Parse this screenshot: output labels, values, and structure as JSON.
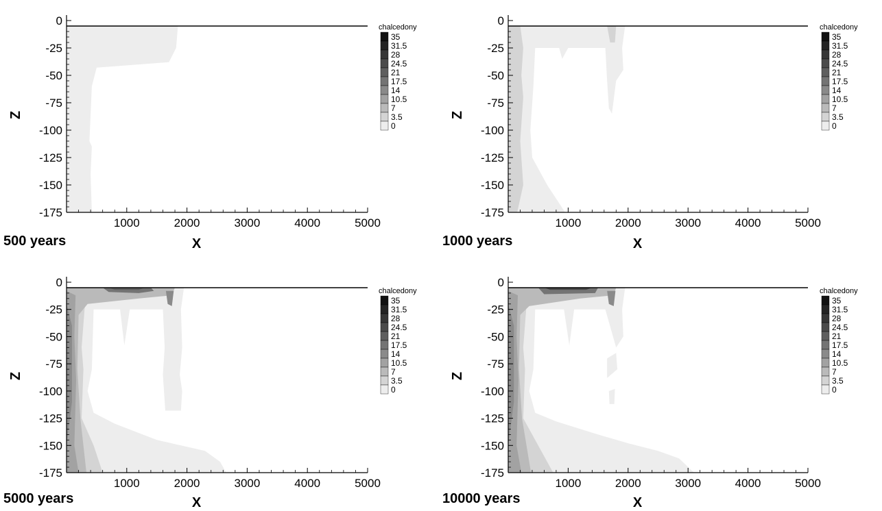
{
  "chart_data": [
    {
      "type": "contour",
      "panel_label": "500 years",
      "xlabel": "X",
      "ylabel": "Z",
      "xlim": [
        0,
        5000
      ],
      "ylim": [
        -175,
        0
      ],
      "x_ticks": [
        "1000",
        "2000",
        "3000",
        "4000",
        "5000"
      ],
      "y_ticks": [
        "0",
        "-25",
        "-50",
        "-75",
        "-100",
        "-125",
        "-150",
        "-175"
      ],
      "surface_z": -5,
      "legend": {
        "title": "chalcedony",
        "levels": [
          "35",
          "31.5",
          "28",
          "24.5",
          "21",
          "17.5",
          "14",
          "10.5",
          "7",
          "3.5",
          "0"
        ]
      },
      "regions": [
        {
          "level": 1,
          "points": [
            [
              0,
              -5
            ],
            [
              1850,
              -5
            ],
            [
              1820,
              -25
            ],
            [
              1700,
              -38
            ],
            [
              500,
              -43
            ],
            [
              420,
              -60
            ],
            [
              380,
              -110
            ],
            [
              420,
              -115
            ],
            [
              400,
              -140
            ],
            [
              420,
              -175
            ],
            [
              0,
              -175
            ]
          ]
        }
      ]
    },
    {
      "type": "contour",
      "panel_label": "1000 years",
      "xlabel": "X",
      "ylabel": "Z",
      "xlim": [
        0,
        5000
      ],
      "ylim": [
        -175,
        0
      ],
      "x_ticks": [
        "1000",
        "2000",
        "3000",
        "4000",
        "5000"
      ],
      "y_ticks": [
        "0",
        "-25",
        "-50",
        "-75",
        "-100",
        "-125",
        "-150",
        "-175"
      ],
      "surface_z": -5,
      "legend": {
        "title": "chalcedony",
        "levels": [
          "35",
          "31.5",
          "28",
          "24.5",
          "21",
          "17.5",
          "14",
          "10.5",
          "7",
          "3.5",
          "0"
        ]
      },
      "regions": [
        {
          "level": 1,
          "points": [
            [
              0,
              -5
            ],
            [
              1950,
              -5
            ],
            [
              1900,
              -25
            ],
            [
              1920,
              -45
            ],
            [
              1800,
              -55
            ],
            [
              1730,
              -85
            ],
            [
              1680,
              -80
            ],
            [
              1650,
              -55
            ],
            [
              1620,
              -25
            ],
            [
              1000,
              -25
            ],
            [
              900,
              -35
            ],
            [
              850,
              -25
            ],
            [
              450,
              -25
            ],
            [
              420,
              -60
            ],
            [
              370,
              -100
            ],
            [
              400,
              -125
            ],
            [
              650,
              -150
            ],
            [
              950,
              -175
            ],
            [
              0,
              -175
            ]
          ]
        },
        {
          "level": 2,
          "points": [
            [
              0,
              -5
            ],
            [
              200,
              -5
            ],
            [
              250,
              -25
            ],
            [
              220,
              -50
            ],
            [
              250,
              -70
            ],
            [
              200,
              -110
            ],
            [
              250,
              -150
            ],
            [
              150,
              -175
            ],
            [
              0,
              -175
            ]
          ]
        },
        {
          "level": 2,
          "points": [
            [
              1650,
              -5
            ],
            [
              1800,
              -5
            ],
            [
              1780,
              -20
            ],
            [
              1700,
              -20
            ]
          ]
        }
      ]
    },
    {
      "type": "contour",
      "panel_label": "5000 years",
      "xlabel": "X",
      "ylabel": "Z",
      "xlim": [
        0,
        5000
      ],
      "ylim": [
        -175,
        0
      ],
      "x_ticks": [
        "1000",
        "2000",
        "3000",
        "4000",
        "5000"
      ],
      "y_ticks": [
        "0",
        "-25",
        "-50",
        "-75",
        "-100",
        "-125",
        "-150",
        "-175"
      ],
      "surface_z": -5,
      "legend": {
        "title": "chalcedony",
        "levels": [
          "35",
          "31.5",
          "28",
          "24.5",
          "21",
          "17.5",
          "14",
          "10.5",
          "7",
          "3.5",
          "0"
        ]
      },
      "regions": [
        {
          "level": 1,
          "points": [
            [
              0,
              -5
            ],
            [
              1950,
              -5
            ],
            [
              1900,
              -25
            ],
            [
              1920,
              -60
            ],
            [
              1880,
              -85
            ],
            [
              1920,
              -100
            ],
            [
              1900,
              -118
            ],
            [
              1640,
              -118
            ],
            [
              1600,
              -85
            ],
            [
              1630,
              -60
            ],
            [
              1600,
              -25
            ],
            [
              1050,
              -25
            ],
            [
              960,
              -58
            ],
            [
              890,
              -25
            ],
            [
              450,
              -25
            ],
            [
              420,
              -80
            ],
            [
              350,
              -100
            ],
            [
              450,
              -120
            ],
            [
              800,
              -130
            ],
            [
              1500,
              -145
            ],
            [
              1900,
              -150
            ],
            [
              2300,
              -155
            ],
            [
              2550,
              -165
            ],
            [
              2650,
              -175
            ],
            [
              0,
              -175
            ]
          ]
        },
        {
          "level": 2,
          "points": [
            [
              0,
              -5
            ],
            [
              350,
              -5
            ],
            [
              300,
              -25
            ],
            [
              250,
              -60
            ],
            [
              280,
              -80
            ],
            [
              250,
              -125
            ],
            [
              450,
              -150
            ],
            [
              600,
              -175
            ],
            [
              0,
              -175
            ]
          ]
        },
        {
          "level": 3,
          "points": [
            [
              0,
              -5
            ],
            [
              1800,
              -5
            ],
            [
              1750,
              -12
            ],
            [
              1200,
              -15
            ],
            [
              350,
              -20
            ],
            [
              200,
              -30
            ],
            [
              180,
              -80
            ],
            [
              230,
              -125
            ],
            [
              330,
              -175
            ],
            [
              0,
              -175
            ]
          ]
        },
        {
          "level": 4,
          "points": [
            [
              0,
              -8
            ],
            [
              150,
              -12
            ],
            [
              130,
              -50
            ],
            [
              160,
              -90
            ],
            [
              130,
              -150
            ],
            [
              200,
              -175
            ],
            [
              0,
              -175
            ]
          ]
        },
        {
          "level": 5,
          "points": [
            [
              0,
              -20
            ],
            [
              90,
              -40
            ],
            [
              90,
              -110
            ],
            [
              0,
              -150
            ]
          ]
        },
        {
          "level": 6,
          "points": [
            [
              600,
              -5
            ],
            [
              1400,
              -5
            ],
            [
              1450,
              -8
            ],
            [
              1200,
              -10
            ],
            [
              700,
              -9
            ]
          ]
        },
        {
          "level": 5,
          "points": [
            [
              1650,
              -8
            ],
            [
              1780,
              -8
            ],
            [
              1750,
              -22
            ],
            [
              1680,
              -20
            ]
          ]
        },
        {
          "level": 7,
          "points": [
            [
              700,
              -5
            ],
            [
              1300,
              -5
            ],
            [
              1200,
              -7
            ],
            [
              800,
              -7
            ]
          ]
        }
      ]
    },
    {
      "type": "contour",
      "panel_label": "10000 years",
      "xlabel": "X",
      "ylabel": "Z",
      "xlim": [
        0,
        5000
      ],
      "ylim": [
        -175,
        0
      ],
      "x_ticks": [
        "1000",
        "2000",
        "3000",
        "4000",
        "5000"
      ],
      "y_ticks": [
        "0",
        "-25",
        "-50",
        "-75",
        "-100",
        "-125",
        "-150",
        "-175"
      ],
      "surface_z": -5,
      "legend": {
        "title": "chalcedony",
        "levels": [
          "35",
          "31.5",
          "28",
          "24.5",
          "21",
          "17.5",
          "14",
          "10.5",
          "7",
          "3.5",
          "0"
        ]
      },
      "regions": [
        {
          "level": 1,
          "points": [
            [
              0,
              -5
            ],
            [
              1950,
              -5
            ],
            [
              1900,
              -25
            ],
            [
              1920,
              -50
            ],
            [
              1800,
              -60
            ],
            [
              1620,
              -25
            ],
            [
              1100,
              -25
            ],
            [
              1020,
              -58
            ],
            [
              930,
              -25
            ],
            [
              450,
              -25
            ],
            [
              420,
              -80
            ],
            [
              350,
              -100
            ],
            [
              450,
              -120
            ],
            [
              800,
              -128
            ],
            [
              1500,
              -140
            ],
            [
              2000,
              -148
            ],
            [
              2500,
              -155
            ],
            [
              2850,
              -162
            ],
            [
              3100,
              -175
            ],
            [
              0,
              -175
            ]
          ]
        },
        {
          "level": 1,
          "points": [
            [
              1650,
              -70
            ],
            [
              1800,
              -65
            ],
            [
              1820,
              -80
            ],
            [
              1650,
              -88
            ]
          ]
        },
        {
          "level": 1,
          "points": [
            [
              1680,
              -100
            ],
            [
              1780,
              -98
            ],
            [
              1770,
              -112
            ],
            [
              1690,
              -112
            ]
          ]
        },
        {
          "level": 2,
          "points": [
            [
              0,
              -5
            ],
            [
              350,
              -5
            ],
            [
              300,
              -25
            ],
            [
              250,
              -60
            ],
            [
              280,
              -80
            ],
            [
              250,
              -125
            ],
            [
              500,
              -150
            ],
            [
              750,
              -175
            ],
            [
              0,
              -175
            ]
          ]
        },
        {
          "level": 3,
          "points": [
            [
              0,
              -5
            ],
            [
              1800,
              -5
            ],
            [
              1760,
              -12
            ],
            [
              1200,
              -15
            ],
            [
              350,
              -22
            ],
            [
              200,
              -30
            ],
            [
              180,
              -80
            ],
            [
              230,
              -125
            ],
            [
              380,
              -175
            ],
            [
              0,
              -175
            ]
          ]
        },
        {
          "level": 4,
          "points": [
            [
              0,
              -8
            ],
            [
              160,
              -12
            ],
            [
              140,
              -50
            ],
            [
              170,
              -90
            ],
            [
              140,
              -150
            ],
            [
              220,
              -175
            ],
            [
              0,
              -175
            ]
          ]
        },
        {
          "level": 5,
          "points": [
            [
              0,
              -20
            ],
            [
              95,
              -40
            ],
            [
              95,
              -110
            ],
            [
              0,
              -150
            ]
          ]
        },
        {
          "level": 6,
          "points": [
            [
              500,
              -5
            ],
            [
              1500,
              -5
            ],
            [
              1450,
              -10
            ],
            [
              600,
              -11
            ]
          ]
        },
        {
          "level": 5,
          "points": [
            [
              1650,
              -8
            ],
            [
              1790,
              -8
            ],
            [
              1760,
              -22
            ],
            [
              1680,
              -20
            ]
          ]
        },
        {
          "level": 8,
          "points": [
            [
              600,
              -5
            ],
            [
              1400,
              -5
            ],
            [
              1300,
              -7
            ],
            [
              700,
              -7
            ]
          ]
        }
      ]
    }
  ]
}
